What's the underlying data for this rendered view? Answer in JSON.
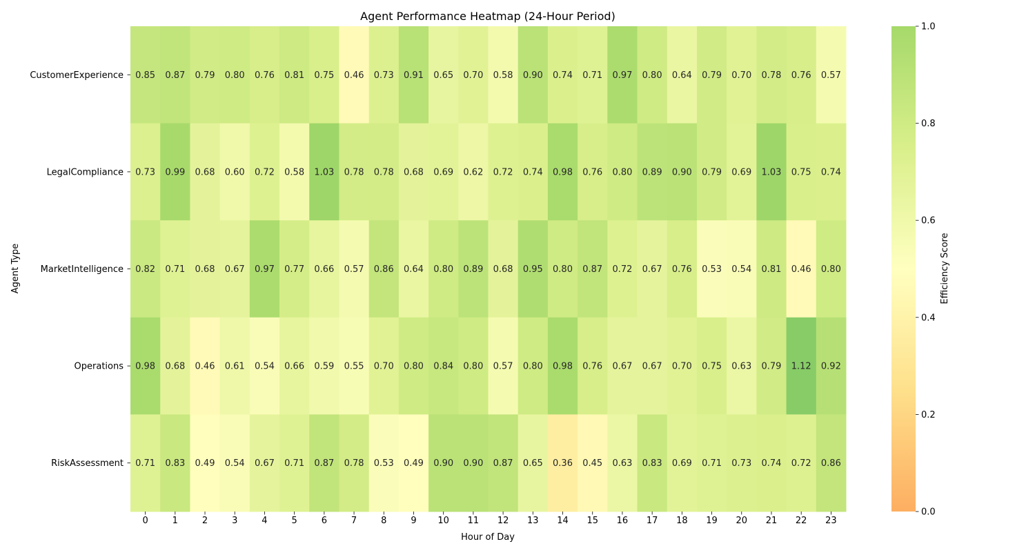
{
  "chart_data": {
    "type": "heatmap",
    "title": "Agent Performance Heatmap (24-Hour Period)",
    "xlabel": "Hour of Day",
    "ylabel": "Agent Type",
    "x": [
      "0",
      "1",
      "2",
      "3",
      "4",
      "5",
      "6",
      "7",
      "8",
      "9",
      "10",
      "11",
      "12",
      "13",
      "14",
      "15",
      "16",
      "17",
      "18",
      "19",
      "20",
      "21",
      "22",
      "23"
    ],
    "y": [
      "CustomerExperience",
      "LegalCompliance",
      "MarketIntelligence",
      "Operations",
      "RiskAssessment"
    ],
    "values": [
      [
        0.85,
        0.87,
        0.79,
        0.8,
        0.76,
        0.81,
        0.75,
        0.46,
        0.73,
        0.91,
        0.65,
        0.7,
        0.58,
        0.9,
        0.74,
        0.71,
        0.97,
        0.8,
        0.64,
        0.79,
        0.7,
        0.78,
        0.76,
        0.57
      ],
      [
        0.73,
        0.99,
        0.68,
        0.6,
        0.72,
        0.58,
        1.03,
        0.78,
        0.78,
        0.68,
        0.69,
        0.62,
        0.72,
        0.74,
        0.98,
        0.76,
        0.8,
        0.89,
        0.9,
        0.79,
        0.69,
        1.03,
        0.75,
        0.74
      ],
      [
        0.82,
        0.71,
        0.68,
        0.67,
        0.97,
        0.77,
        0.66,
        0.57,
        0.86,
        0.64,
        0.8,
        0.89,
        0.68,
        0.95,
        0.8,
        0.87,
        0.72,
        0.67,
        0.76,
        0.53,
        0.54,
        0.81,
        0.46,
        0.8
      ],
      [
        0.98,
        0.68,
        0.46,
        0.61,
        0.54,
        0.66,
        0.59,
        0.55,
        0.7,
        0.8,
        0.84,
        0.8,
        0.57,
        0.8,
        0.98,
        0.76,
        0.67,
        0.67,
        0.7,
        0.75,
        0.63,
        0.79,
        1.12,
        0.92
      ],
      [
        0.71,
        0.83,
        0.49,
        0.54,
        0.67,
        0.71,
        0.87,
        0.78,
        0.53,
        0.49,
        0.9,
        0.9,
        0.87,
        0.65,
        0.36,
        0.45,
        0.63,
        0.83,
        0.69,
        0.71,
        0.73,
        0.74,
        0.72,
        0.86
      ]
    ],
    "colorbar": {
      "label": "Efficiency Score",
      "range": [
        0,
        1
      ],
      "ticks": [
        "0.0",
        "0.2",
        "0.4",
        "0.6",
        "0.8",
        "1.0"
      ],
      "colormap": "RdYlGn"
    },
    "grid": false,
    "legend": "colorbar-right"
  }
}
